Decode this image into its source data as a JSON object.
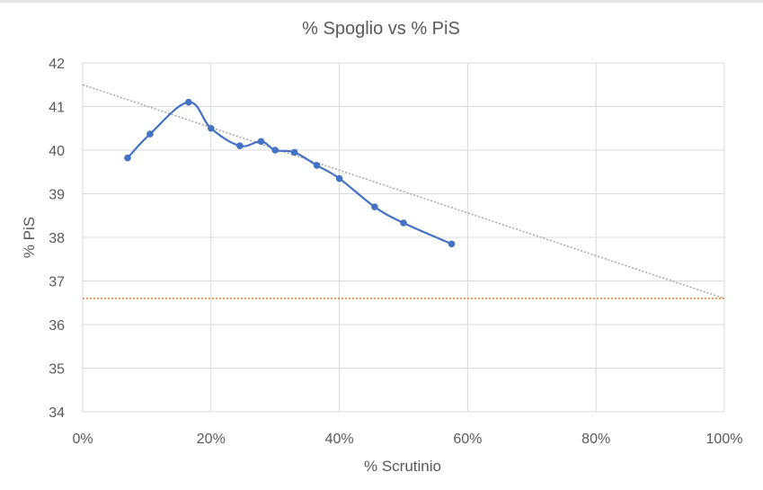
{
  "chart_data": {
    "type": "line",
    "title": "% Spoglio vs % PiS",
    "xlabel": "% Scrutinio",
    "ylabel": "% PiS",
    "xlim": [
      0,
      1
    ],
    "ylim": [
      34,
      42
    ],
    "x_ticks": [
      "0%",
      "20%",
      "40%",
      "60%",
      "80%",
      "100%"
    ],
    "y_ticks": [
      "34",
      "35",
      "36",
      "37",
      "38",
      "39",
      "40",
      "41",
      "42"
    ],
    "grid": true,
    "legend": "none",
    "series": [
      {
        "style": "smooth-line-with-markers",
        "color": "#4472C4",
        "x": [
          0.07,
          0.105,
          0.165,
          0.2,
          0.245,
          0.278,
          0.3,
          0.33,
          0.365,
          0.4,
          0.455,
          0.5,
          0.575
        ],
        "y": [
          39.82,
          40.37,
          41.1,
          40.5,
          40.1,
          40.2,
          40.0,
          39.95,
          39.65,
          39.35,
          38.7,
          38.33,
          37.85
        ]
      }
    ],
    "trendline": {
      "style": "dotted",
      "color": "#a6a6a6",
      "x": [
        0,
        1
      ],
      "y": [
        41.5,
        36.6
      ]
    },
    "reference_line": {
      "style": "dotted",
      "color": "#ED7D31",
      "y": 36.6
    }
  }
}
